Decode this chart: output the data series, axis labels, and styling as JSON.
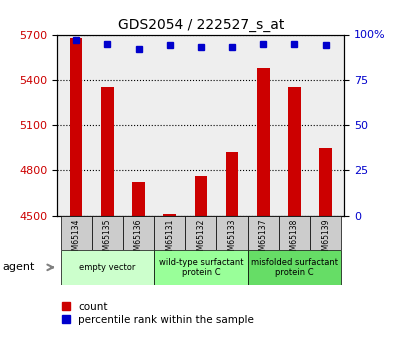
{
  "title": "GDS2054 / 222527_s_at",
  "samples": [
    "GSM65134",
    "GSM65135",
    "GSM65136",
    "GSM65131",
    "GSM65132",
    "GSM65133",
    "GSM65137",
    "GSM65138",
    "GSM65139"
  ],
  "counts": [
    5680,
    5350,
    4720,
    4510,
    4760,
    4920,
    5480,
    5350,
    4950
  ],
  "percentiles": [
    97,
    95,
    92,
    94,
    93,
    93,
    95,
    95,
    94
  ],
  "ylim_left": [
    4500,
    5700
  ],
  "ylim_right": [
    0,
    100
  ],
  "yticks_left": [
    4500,
    4800,
    5100,
    5400,
    5700
  ],
  "yticks_right": [
    0,
    25,
    50,
    75,
    100
  ],
  "ytick_labels_right": [
    "0",
    "25",
    "50",
    "75",
    "100%"
  ],
  "bar_color": "#cc0000",
  "dot_color": "#0000cc",
  "groups": [
    {
      "label": "empty vector",
      "indices": [
        0,
        1,
        2
      ],
      "color": "#ccffcc"
    },
    {
      "label": "wild-type surfactant\nprotein C",
      "indices": [
        3,
        4,
        5
      ],
      "color": "#99ff99"
    },
    {
      "label": "misfolded surfactant\nprotein C",
      "indices": [
        6,
        7,
        8
      ],
      "color": "#66dd66"
    }
  ],
  "legend_count_label": "count",
  "legend_pct_label": "percentile rank within the sample",
  "plot_bg": "#eeeeee",
  "grid_color": "#000000",
  "sample_box_color": "#cccccc"
}
